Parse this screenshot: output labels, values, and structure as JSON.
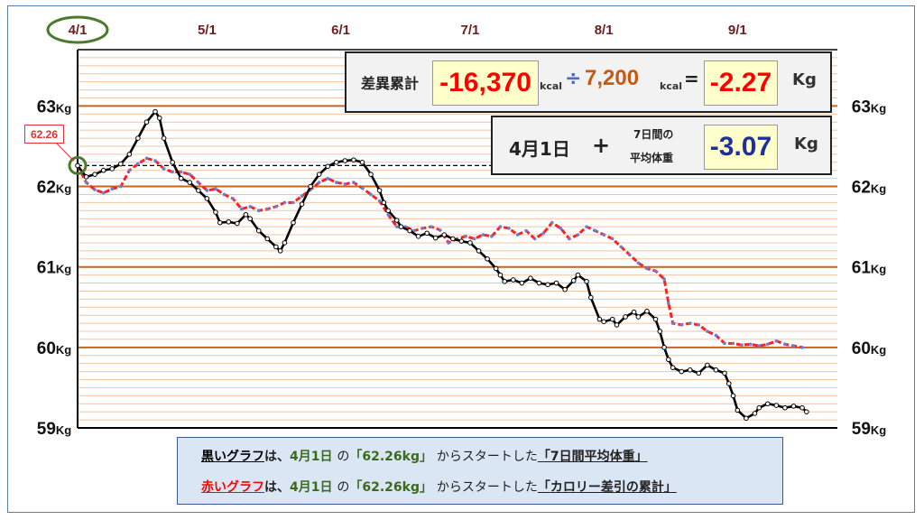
{
  "chart_data": {
    "type": "line",
    "x_tick_labels": [
      "4/1",
      "5/1",
      "6/1",
      "7/1",
      "8/1",
      "9/1"
    ],
    "x_tick_days": [
      0,
      30,
      61,
      91,
      122,
      153
    ],
    "y_tick_labels": [
      "63Kg",
      "62Kg",
      "61Kg",
      "60Kg",
      "59Kg"
    ],
    "y_ticks": [
      63,
      62,
      61,
      60,
      59
    ],
    "ylim": [
      59,
      63.7
    ],
    "grid": true,
    "start_label": "62.26",
    "start_value": 62.26,
    "series": [
      {
        "color": "#000000",
        "points": [
          [
            0,
            62.26
          ],
          [
            2,
            62.12
          ],
          [
            4,
            62.15
          ],
          [
            6,
            62.2
          ],
          [
            8,
            62.22
          ],
          [
            10,
            62.28
          ],
          [
            12,
            62.4
          ],
          [
            14,
            62.6
          ],
          [
            16,
            62.8
          ],
          [
            18,
            62.93
          ],
          [
            19,
            62.85
          ],
          [
            20,
            62.6
          ],
          [
            22,
            62.3
          ],
          [
            24,
            62.1
          ],
          [
            26,
            62.05
          ],
          [
            28,
            61.95
          ],
          [
            30,
            61.85
          ],
          [
            32,
            61.68
          ],
          [
            33,
            61.55
          ],
          [
            35,
            61.56
          ],
          [
            37,
            61.54
          ],
          [
            39,
            61.65
          ],
          [
            40,
            61.6
          ],
          [
            42,
            61.45
          ],
          [
            44,
            61.35
          ],
          [
            46,
            61.25
          ],
          [
            47,
            61.2
          ],
          [
            48,
            61.3
          ],
          [
            50,
            61.55
          ],
          [
            52,
            61.78
          ],
          [
            54,
            62.0
          ],
          [
            56,
            62.15
          ],
          [
            58,
            62.25
          ],
          [
            60,
            62.3
          ],
          [
            62,
            62.32
          ],
          [
            64,
            62.33
          ],
          [
            66,
            62.3
          ],
          [
            68,
            62.15
          ],
          [
            70,
            61.95
          ],
          [
            71,
            61.8
          ],
          [
            72,
            61.7
          ],
          [
            74,
            61.58
          ],
          [
            75,
            61.5
          ],
          [
            77,
            61.45
          ],
          [
            79,
            61.38
          ],
          [
            81,
            61.42
          ],
          [
            83,
            61.36
          ],
          [
            85,
            61.4
          ],
          [
            87,
            61.35
          ],
          [
            89,
            61.32
          ],
          [
            91,
            61.3
          ],
          [
            93,
            61.2
          ],
          [
            95,
            61.1
          ],
          [
            97,
            60.98
          ],
          [
            98,
            60.9
          ],
          [
            99,
            60.82
          ],
          [
            101,
            60.84
          ],
          [
            103,
            60.8
          ],
          [
            105,
            60.86
          ],
          [
            107,
            60.8
          ],
          [
            109,
            60.78
          ],
          [
            111,
            60.8
          ],
          [
            113,
            60.72
          ],
          [
            115,
            60.83
          ],
          [
            116,
            60.9
          ],
          [
            118,
            60.82
          ],
          [
            119,
            60.62
          ],
          [
            121,
            60.35
          ],
          [
            122,
            60.32
          ],
          [
            124,
            60.35
          ],
          [
            125,
            60.28
          ],
          [
            127,
            60.38
          ],
          [
            129,
            60.44
          ],
          [
            130,
            60.38
          ],
          [
            132,
            60.45
          ],
          [
            134,
            60.35
          ],
          [
            135,
            60.2
          ],
          [
            136,
            60.0
          ],
          [
            137,
            59.85
          ],
          [
            138,
            59.75
          ],
          [
            140,
            59.7
          ],
          [
            142,
            59.72
          ],
          [
            144,
            59.68
          ],
          [
            146,
            59.78
          ],
          [
            148,
            59.72
          ],
          [
            150,
            59.68
          ],
          [
            151,
            59.55
          ],
          [
            152,
            59.4
          ],
          [
            153,
            59.22
          ],
          [
            155,
            59.12
          ],
          [
            157,
            59.18
          ],
          [
            158,
            59.25
          ],
          [
            160,
            59.3
          ],
          [
            162,
            59.28
          ],
          [
            164,
            59.25
          ],
          [
            166,
            59.27
          ],
          [
            168,
            59.25
          ],
          [
            169,
            59.2
          ]
        ]
      },
      {
        "color": "#ff2020",
        "points": [
          [
            0,
            62.26
          ],
          [
            2,
            62.05
          ],
          [
            4,
            61.96
          ],
          [
            6,
            61.92
          ],
          [
            8,
            61.97
          ],
          [
            10,
            62.0
          ],
          [
            12,
            62.2
          ],
          [
            14,
            62.28
          ],
          [
            16,
            62.35
          ],
          [
            18,
            62.32
          ],
          [
            20,
            62.22
          ],
          [
            22,
            62.18
          ],
          [
            24,
            62.18
          ],
          [
            26,
            62.15
          ],
          [
            28,
            62.05
          ],
          [
            30,
            61.95
          ],
          [
            32,
            61.97
          ],
          [
            34,
            61.9
          ],
          [
            36,
            61.85
          ],
          [
            38,
            61.72
          ],
          [
            40,
            61.75
          ],
          [
            42,
            61.7
          ],
          [
            44,
            61.72
          ],
          [
            46,
            61.75
          ],
          [
            48,
            61.8
          ],
          [
            50,
            61.8
          ],
          [
            52,
            61.88
          ],
          [
            54,
            61.96
          ],
          [
            56,
            62.05
          ],
          [
            58,
            62.1
          ],
          [
            60,
            62.05
          ],
          [
            62,
            62.03
          ],
          [
            64,
            62.05
          ],
          [
            66,
            61.98
          ],
          [
            68,
            61.9
          ],
          [
            70,
            61.82
          ],
          [
            72,
            61.65
          ],
          [
            74,
            61.5
          ],
          [
            76,
            61.5
          ],
          [
            78,
            61.45
          ],
          [
            80,
            61.48
          ],
          [
            82,
            61.5
          ],
          [
            84,
            61.46
          ],
          [
            86,
            61.3
          ],
          [
            88,
            61.35
          ],
          [
            90,
            61.38
          ],
          [
            92,
            61.35
          ],
          [
            94,
            61.4
          ],
          [
            96,
            61.38
          ],
          [
            98,
            61.5
          ],
          [
            100,
            61.48
          ],
          [
            102,
            61.4
          ],
          [
            104,
            61.45
          ],
          [
            106,
            61.35
          ],
          [
            108,
            61.42
          ],
          [
            110,
            61.55
          ],
          [
            112,
            61.48
          ],
          [
            114,
            61.35
          ],
          [
            116,
            61.4
          ],
          [
            118,
            61.5
          ],
          [
            120,
            61.45
          ],
          [
            122,
            61.4
          ],
          [
            124,
            61.35
          ],
          [
            126,
            61.25
          ],
          [
            128,
            61.15
          ],
          [
            130,
            61.05
          ],
          [
            132,
            60.98
          ],
          [
            134,
            60.95
          ],
          [
            136,
            60.85
          ],
          [
            137,
            60.55
          ],
          [
            138,
            60.3
          ],
          [
            140,
            60.28
          ],
          [
            142,
            60.3
          ],
          [
            144,
            60.28
          ],
          [
            146,
            60.2
          ],
          [
            148,
            60.15
          ],
          [
            150,
            60.05
          ],
          [
            152,
            60.05
          ],
          [
            154,
            60.03
          ],
          [
            156,
            60.04
          ],
          [
            158,
            60.02
          ],
          [
            160,
            60.04
          ],
          [
            162,
            60.08
          ],
          [
            164,
            60.04
          ],
          [
            166,
            60.02
          ],
          [
            168,
            60.0
          ]
        ]
      }
    ]
  },
  "summary_box": {
    "label": "差異累計",
    "deficit_value": "-16,370",
    "kcal1": "kcal",
    "divide": "÷",
    "divisor": "7,200",
    "kcal2": "kcal",
    "equals": "=",
    "result": "-2.27",
    "kg": "Kg"
  },
  "start_box": {
    "date": "4月1日",
    "plus": "+",
    "label_line1": "7日間の",
    "label_line2": "平均体重",
    "value": "-3.07",
    "kg": "Kg"
  },
  "legend": {
    "black_prefix": "黒いグラフ",
    "red_prefix": "赤いグラフ",
    "ha": "は、",
    "date": "4月1日",
    "no": "の",
    "value": "「62.26kg」",
    "from": "からスタートした",
    "black_item": "「7日間平均体重」",
    "red_item": "「カロリー差引の累計」"
  },
  "colors": {
    "black_series": "#000000",
    "red_series": "#ff2020",
    "blue_dots": "#6a7fd8",
    "major_grid": "#c5651d",
    "minor_grid": "#f0c4a4",
    "circle_highlight": "#4a7a2a",
    "summary_red": "#ff0000",
    "divisor_color": "#c55a11",
    "result_blue": "#1f2fa0"
  }
}
